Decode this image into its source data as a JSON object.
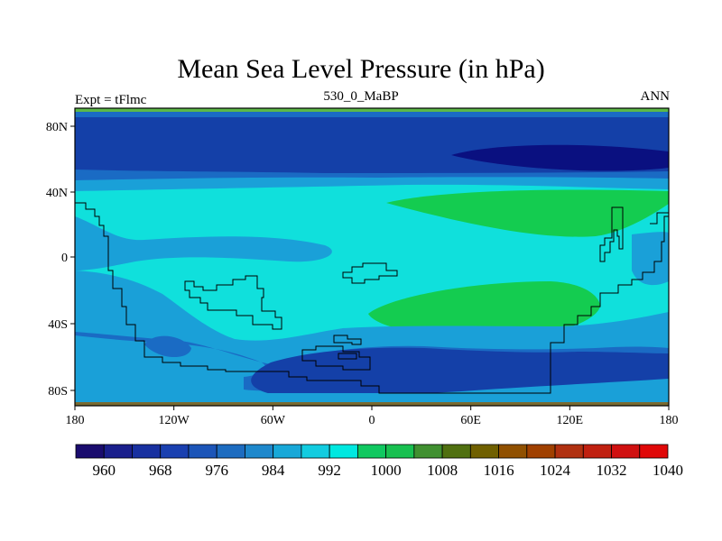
{
  "title": "Mean Sea Level Pressure (in hPa)",
  "left_label": "Expt = tFlmc",
  "center_label": "530_0_MaBP",
  "right_label": "ANN",
  "map": {
    "lon_ticks": [
      "180",
      "120W",
      "60W",
      "0",
      "60E",
      "120E",
      "180"
    ],
    "lat_ticks": [
      "80N",
      "40N",
      "0",
      "40S",
      "80S"
    ],
    "lon_range": [
      -180,
      180
    ],
    "lat_range": [
      -90,
      90
    ]
  },
  "colorbar": {
    "labels": [
      "960",
      "968",
      "976",
      "984",
      "992",
      "1000",
      "1008",
      "1016",
      "1024",
      "1032",
      "1040"
    ],
    "colors": [
      "#1a0c6e",
      "#1a1f8c",
      "#1830a0",
      "#1a40b0",
      "#1c55b8",
      "#1d6cc0",
      "#1e88cc",
      "#18a8d8",
      "#12cce0",
      "#00e8e0",
      "#10c860",
      "#18c050",
      "#409030",
      "#507010",
      "#706000",
      "#905000",
      "#a04000",
      "#b03010",
      "#c02010",
      "#d01010",
      "#e00808"
    ]
  },
  "colors": {
    "lowest": "#0a1080",
    "very_low": "#1440a8",
    "low": "#1a6bc4",
    "mid_low": "#1aa0d8",
    "mid": "#10e0dc",
    "high": "#14cc50"
  }
}
